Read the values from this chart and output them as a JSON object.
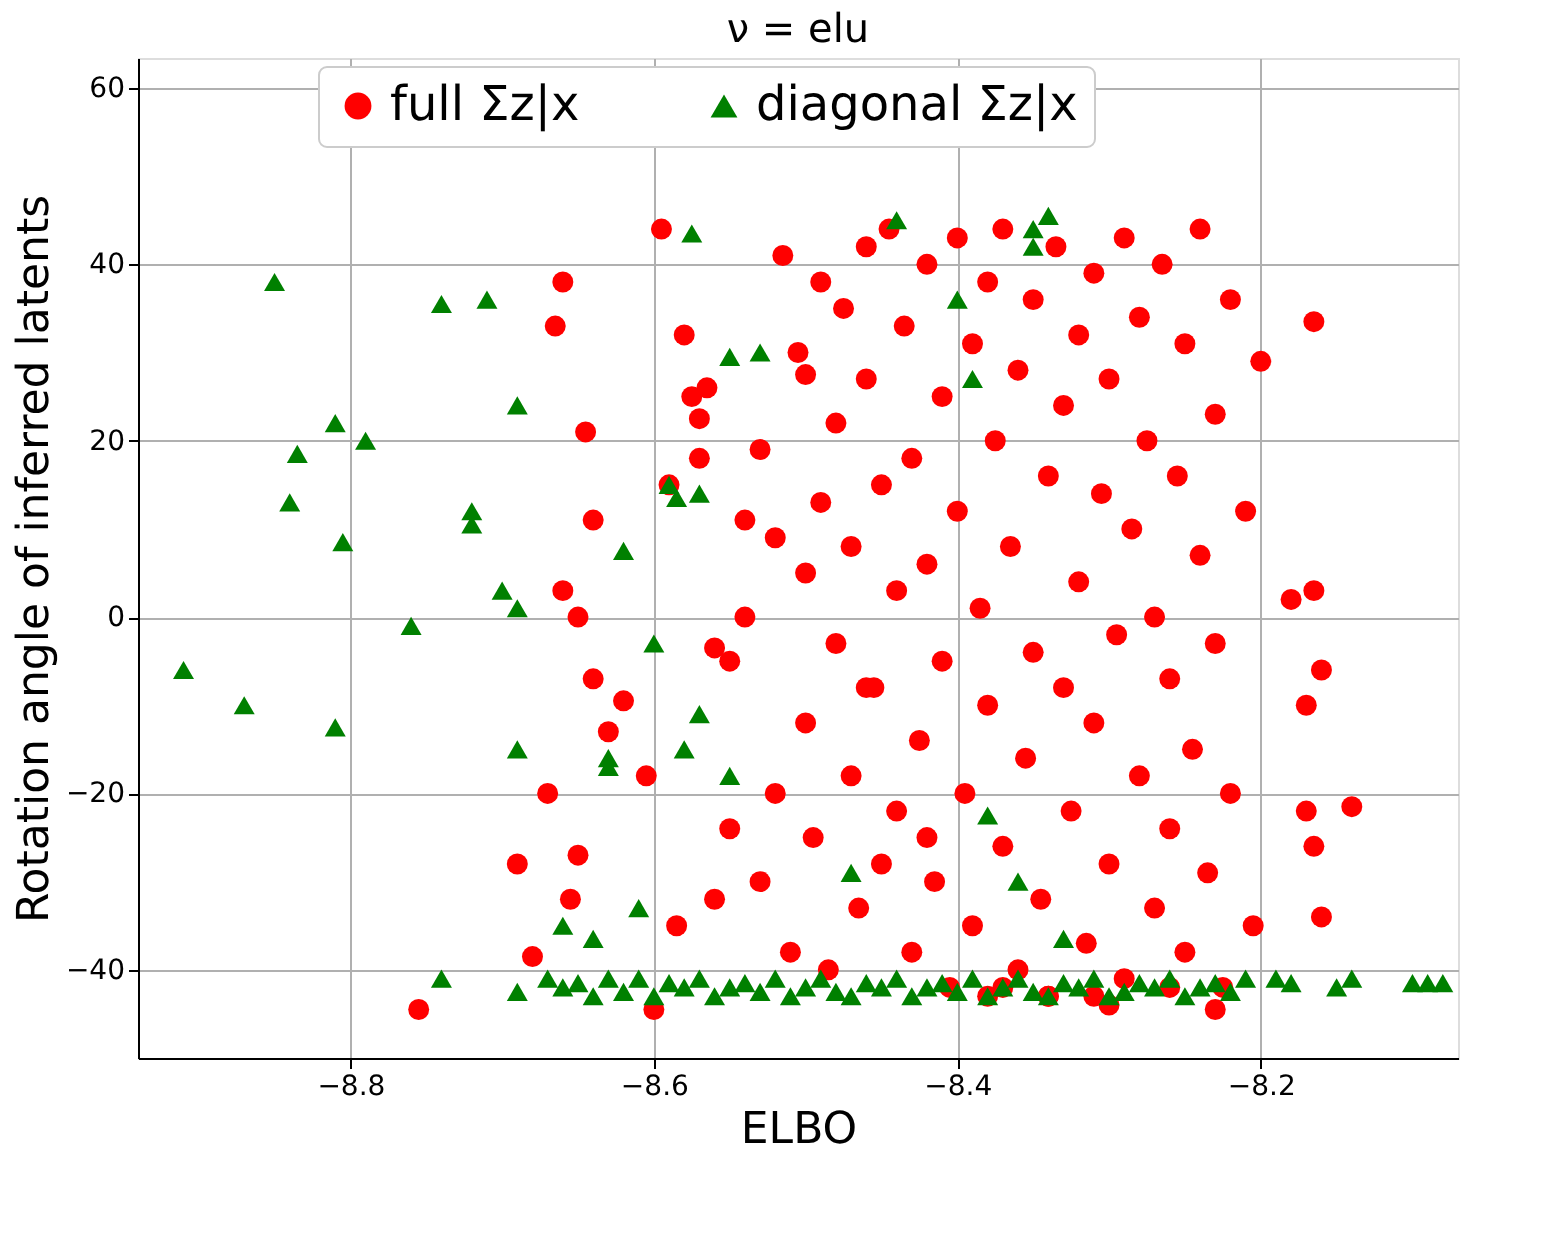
{
  "chart_data": {
    "type": "scatter",
    "title": "ν = elu",
    "xlabel": "ELBO",
    "ylabel": "Rotation angle of inferred latents",
    "xlim": [
      -8.94,
      -8.07
    ],
    "ylim": [
      -50,
      63.4
    ],
    "xticks": [
      -8.8,
      -8.6,
      -8.4,
      -8.2
    ],
    "yticks": [
      -40,
      -20,
      0,
      20,
      40,
      60
    ],
    "grid": true,
    "legend": "top",
    "series": [
      {
        "name": "full Σz|x",
        "color": "#ff0000",
        "marker": "circle",
        "x": [
          -8.755,
          -8.69,
          -8.68,
          -8.67,
          -8.665,
          -8.66,
          -8.66,
          -8.655,
          -8.65,
          -8.65,
          -8.645,
          -8.64,
          -8.64,
          -8.63,
          -8.62,
          -8.605,
          -8.6,
          -8.595,
          -8.59,
          -8.585,
          -8.58,
          -8.575,
          -8.57,
          -8.57,
          -8.565,
          -8.56,
          -8.56,
          -8.55,
          -8.55,
          -8.54,
          -8.54,
          -8.53,
          -8.53,
          -8.52,
          -8.52,
          -8.515,
          -8.51,
          -8.505,
          -8.5,
          -8.5,
          -8.495,
          -8.49,
          -8.49,
          -8.485,
          -8.48,
          -8.48,
          -8.475,
          -8.47,
          -8.47,
          -8.465,
          -8.46,
          -8.46,
          -8.455,
          -8.45,
          -8.45,
          -8.445,
          -8.44,
          -8.44,
          -8.435,
          -8.43,
          -8.43,
          -8.425,
          -8.42,
          -8.42,
          -8.415,
          -8.41,
          -8.41,
          -8.405,
          -8.4,
          -8.4,
          -8.395,
          -8.39,
          -8.39,
          -8.385,
          -8.38,
          -8.38,
          -8.375,
          -8.37,
          -8.37,
          -8.365,
          -8.36,
          -8.36,
          -8.355,
          -8.35,
          -8.35,
          -8.345,
          -8.34,
          -8.34,
          -8.335,
          -8.33,
          -8.33,
          -8.325,
          -8.32,
          -8.32,
          -8.315,
          -8.31,
          -8.31,
          -8.305,
          -8.3,
          -8.3,
          -8.295,
          -8.29,
          -8.29,
          -8.285,
          -8.28,
          -8.28,
          -8.275,
          -8.27,
          -8.27,
          -8.265,
          -8.26,
          -8.26,
          -8.255,
          -8.25,
          -8.25,
          -8.245,
          -8.24,
          -8.24,
          -8.235,
          -8.23,
          -8.23,
          -8.225,
          -8.22,
          -8.22,
          -8.21,
          -8.205,
          -8.2,
          -8.18,
          -8.17,
          -8.17,
          -8.165,
          -8.165,
          -8.165,
          -8.16,
          -8.16,
          -8.14,
          -8.5,
          -8.46,
          -8.42,
          -8.38,
          -8.34,
          -8.3,
          -8.26,
          -8.23,
          -8.31,
          -8.37
        ],
        "values": [
          -44.5,
          -28,
          -38.5,
          -20,
          33,
          38,
          3,
          -32,
          -27,
          0,
          21,
          11,
          -7,
          -13,
          -9.5,
          -18,
          -44.5,
          44,
          15,
          -35,
          32,
          25,
          22.5,
          18,
          26,
          -3.5,
          -32,
          -24,
          -5,
          0,
          11,
          -30,
          19,
          9,
          -20,
          41,
          -38,
          30,
          5,
          -12,
          -25,
          38,
          13,
          -40,
          22,
          -3,
          35,
          -18,
          8,
          -33,
          42,
          27,
          -8,
          15,
          -28,
          44,
          3,
          -22,
          33,
          -38,
          18,
          -14,
          40,
          6,
          -30,
          25,
          -5,
          -42,
          43,
          12,
          -20,
          31,
          -35,
          1,
          38,
          -10,
          20,
          -26,
          44,
          8,
          -40,
          28,
          -16,
          36,
          -4,
          -32,
          16,
          -43,
          42,
          24,
          -8,
          -22,
          32,
          4,
          -37,
          39,
          -12,
          14,
          -28,
          27,
          -2,
          43,
          -41,
          10,
          -18,
          34,
          20,
          -33,
          0,
          40,
          -24,
          -7,
          16,
          -38,
          31,
          -15,
          7,
          44,
          -29,
          23,
          -3,
          -42,
          36,
          -20,
          12,
          -35,
          29,
          2,
          -10,
          -22,
          33.5,
          -26,
          3,
          -6,
          -34,
          -21.5,
          27.5,
          -8,
          -25,
          -43,
          -43,
          -44,
          -42,
          -44.5,
          -43,
          -42
        ]
      },
      {
        "name": "diagonal Σz|x",
        "color": "#008000",
        "marker": "triangle",
        "x": [
          -8.91,
          -8.87,
          -8.85,
          -8.84,
          -8.835,
          -8.81,
          -8.805,
          -8.79,
          -8.81,
          -8.76,
          -8.74,
          -8.74,
          -8.72,
          -8.72,
          -8.71,
          -8.7,
          -8.69,
          -8.69,
          -8.69,
          -8.69,
          -8.66,
          -8.64,
          -8.63,
          -8.63,
          -8.62,
          -8.61,
          -8.6,
          -8.59,
          -8.585,
          -8.58,
          -8.575,
          -8.57,
          -8.57,
          -8.55,
          -8.55,
          -8.53,
          -8.47,
          -8.44,
          -8.4,
          -8.39,
          -8.38,
          -8.36,
          -8.35,
          -8.35,
          -8.34,
          -8.33,
          -8.67,
          -8.66,
          -8.65,
          -8.64,
          -8.63,
          -8.62,
          -8.61,
          -8.6,
          -8.59,
          -8.58,
          -8.57,
          -8.56,
          -8.55,
          -8.54,
          -8.53,
          -8.52,
          -8.51,
          -8.5,
          -8.49,
          -8.48,
          -8.47,
          -8.46,
          -8.45,
          -8.44,
          -8.43,
          -8.42,
          -8.41,
          -8.4,
          -8.39,
          -8.38,
          -8.37,
          -8.36,
          -8.35,
          -8.34,
          -8.33,
          -8.32,
          -8.31,
          -8.3,
          -8.29,
          -8.28,
          -8.27,
          -8.26,
          -8.25,
          -8.24,
          -8.23,
          -8.22,
          -8.21,
          -8.19,
          -8.18,
          -8.15,
          -8.14,
          -8.1,
          -8.09,
          -8.08
        ],
        "values": [
          -6,
          -10,
          38,
          13,
          18.5,
          22,
          8.5,
          20,
          -12.5,
          -1,
          -41,
          35.5,
          10.5,
          12,
          36,
          3,
          1,
          -15,
          24,
          -42.5,
          -35,
          -36.5,
          -17,
          -16,
          7.5,
          -33,
          -3,
          15,
          13.5,
          -15,
          43.5,
          -11,
          14,
          29.5,
          -18,
          30,
          -29,
          45,
          36,
          27,
          -22.5,
          -30,
          44,
          42,
          45.5,
          -36.5,
          -41,
          -42,
          -41.5,
          -43,
          -41,
          -42.5,
          -41,
          -43,
          -41.5,
          -42,
          -41,
          -43,
          -42,
          -41.5,
          -42.5,
          -41,
          -43,
          -42,
          -41,
          -42.5,
          -43,
          -41.5,
          -42,
          -41,
          -43,
          -42,
          -41.5,
          -42.5,
          -41,
          -43,
          -42,
          -41,
          -42.5,
          -43,
          -41.5,
          -42,
          -41,
          -43,
          -42.5,
          -41.5,
          -42,
          -41,
          -43,
          -42,
          -41.5,
          -42.5,
          -41,
          -41,
          -41.5,
          -42,
          -41,
          -41.5,
          -41.5,
          -41.5
        ]
      }
    ]
  }
}
